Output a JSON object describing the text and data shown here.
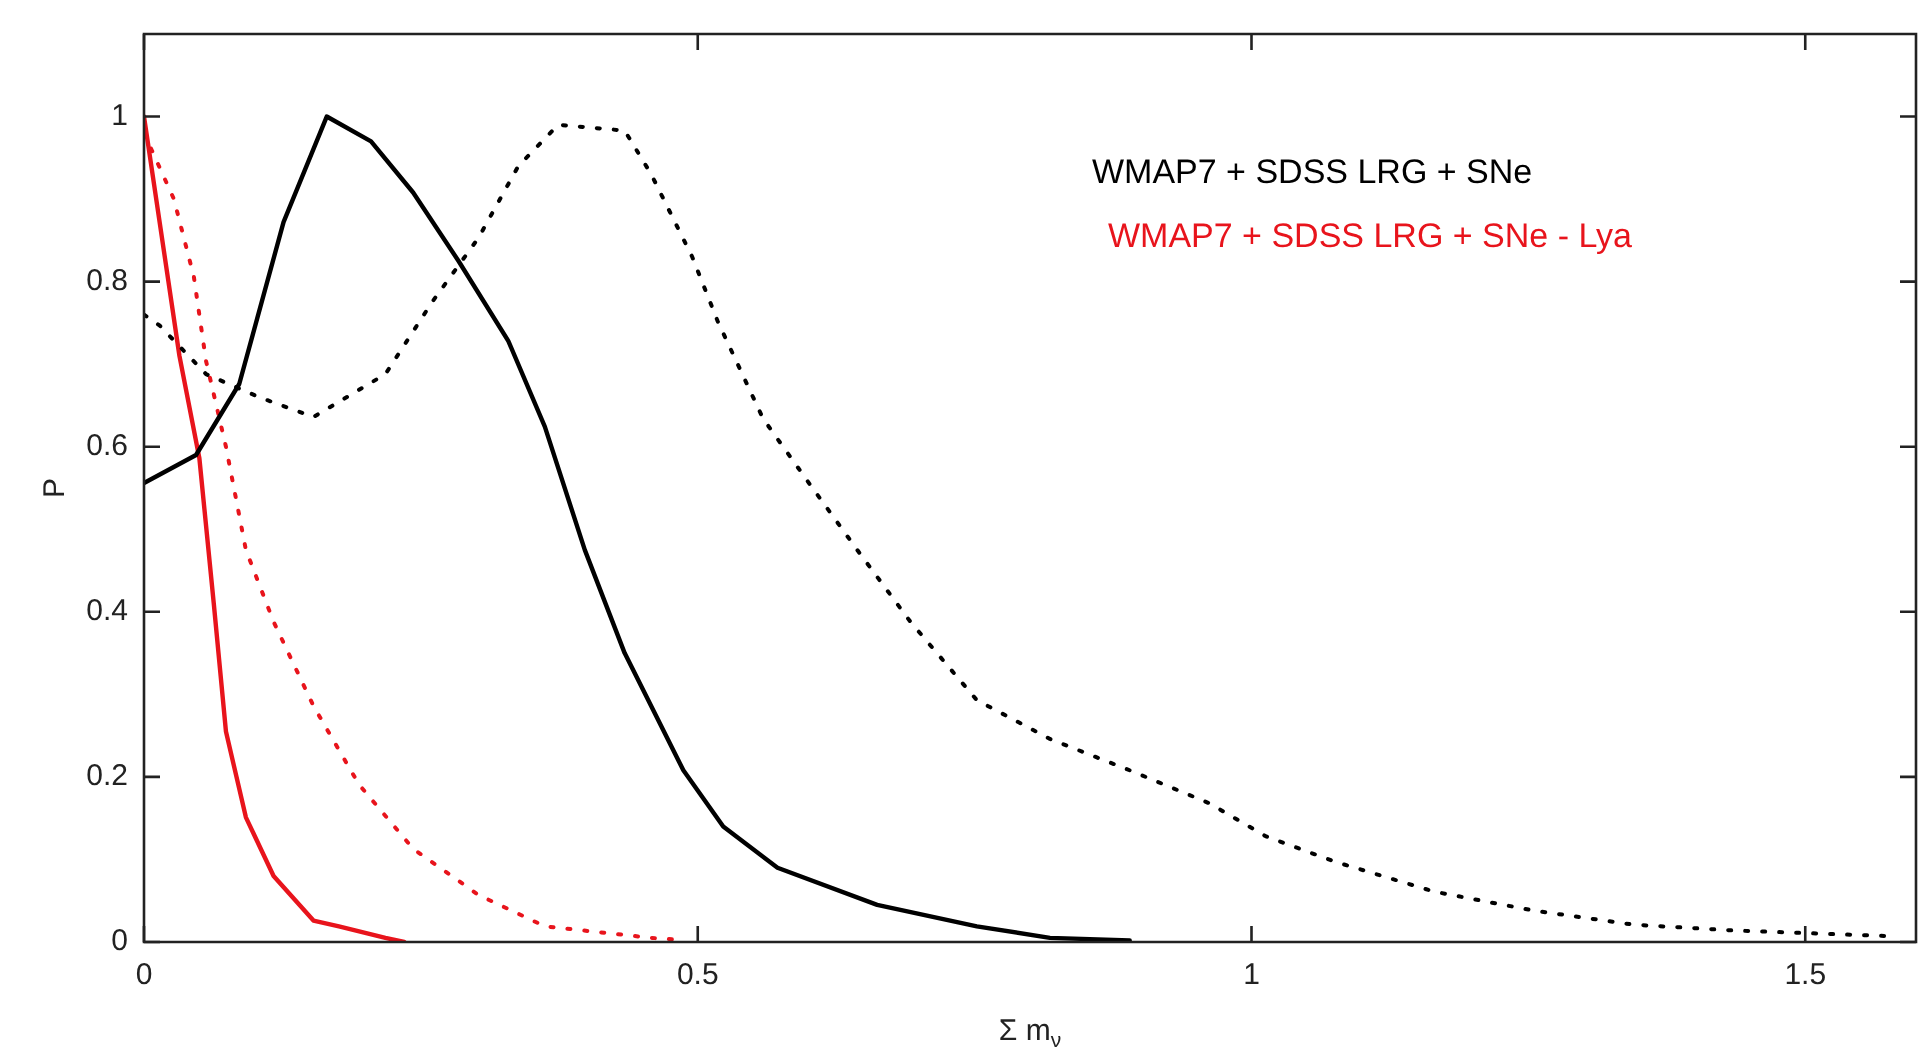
{
  "chart_data": {
    "type": "line",
    "xlabel": "Σ m$_{ν}$",
    "ylabel": "P",
    "xlim": [
      0,
      1.6
    ],
    "xticks": [
      0,
      0.5,
      1,
      1.5
    ],
    "ylim": [
      0,
      1.1
    ],
    "yticks": [
      0,
      0.2,
      0.4,
      0.6,
      0.8,
      1
    ],
    "grid": false,
    "legend": "top right",
    "marker": "none",
    "series": [
      {
        "name": "WMAP7 + SDSS LRG + SNe",
        "color": "#000000",
        "line_style": "solid",
        "x": [
          0,
          0.047,
          0.086,
          0.126,
          0.165,
          0.205,
          0.243,
          0.284,
          0.329,
          0.362,
          0.398,
          0.434,
          0.487,
          0.523,
          0.572,
          0.662,
          0.752,
          0.818,
          0.89
        ],
        "values": [
          0.556,
          0.59,
          0.676,
          0.872,
          1.0,
          0.97,
          0.908,
          0.825,
          0.728,
          0.624,
          0.475,
          0.35,
          0.208,
          0.14,
          0.09,
          0.045,
          0.019,
          0.005,
          0.002
        ]
      },
      {
        "color": "#000000",
        "line_style": "dotted",
        "x": [
          0,
          0.014,
          0.056,
          0.104,
          0.153,
          0.218,
          0.26,
          0.302,
          0.338,
          0.374,
          0.434,
          0.458,
          0.495,
          0.518,
          0.559,
          0.602,
          0.644,
          0.692,
          0.752,
          0.818,
          0.89,
          0.962,
          1.013,
          1.076,
          1.165,
          1.255,
          1.345,
          1.435,
          1.579
        ],
        "values": [
          0.76,
          0.747,
          0.688,
          0.66,
          0.636,
          0.688,
          0.775,
          0.853,
          0.94,
          0.99,
          0.983,
          0.93,
          0.83,
          0.752,
          0.634,
          0.553,
          0.475,
          0.388,
          0.293,
          0.246,
          0.208,
          0.168,
          0.128,
          0.097,
          0.061,
          0.038,
          0.021,
          0.014,
          0.007
        ]
      },
      {
        "name": "WMAP7 + SDSS LRG + SNe - Lya",
        "color": "#e8141c",
        "line_style": "solid",
        "x": [
          0,
          0.032,
          0.05,
          0.063,
          0.074,
          0.092,
          0.117,
          0.153,
          0.176,
          0.218,
          0.235
        ],
        "values": [
          1.0,
          0.71,
          0.586,
          0.41,
          0.255,
          0.151,
          0.08,
          0.026,
          0.019,
          0.005,
          0
        ]
      },
      {
        "color": "#e8141c",
        "line_style": "dotted",
        "x": [
          0,
          0.027,
          0.045,
          0.056,
          0.074,
          0.092,
          0.117,
          0.153,
          0.194,
          0.243,
          0.302,
          0.362,
          0.458,
          0.48
        ],
        "values": [
          0.98,
          0.9,
          0.806,
          0.704,
          0.6,
          0.475,
          0.388,
          0.286,
          0.191,
          0.113,
          0.057,
          0.019,
          0.005,
          0.003
        ]
      }
    ]
  }
}
